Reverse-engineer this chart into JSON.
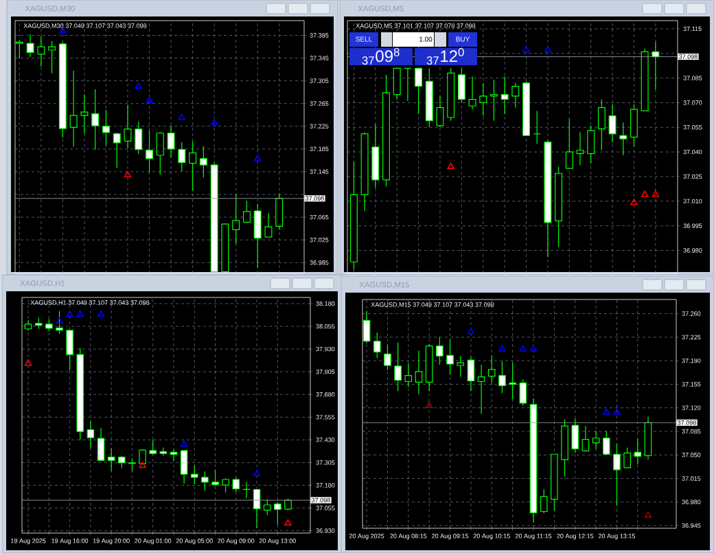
{
  "chart_data": [
    {
      "type": "candlestick",
      "title": "XAGUSD,M30",
      "subtitle": "XAGUSD,M30 37.049 37.107 37.043 37.098",
      "color": "#00ff00",
      "grid": true,
      "tick_labels": "y",
      "categories": [
        null,
        null,
        null,
        null,
        null,
        null,
        null,
        null,
        null,
        null,
        null,
        null,
        null,
        null,
        null,
        null,
        null,
        null,
        null,
        null,
        null,
        null,
        null,
        null,
        null
      ],
      "ohlc": [
        [
          37.371,
          37.376,
          37.345,
          37.373
        ],
        [
          37.371,
          37.387,
          37.347,
          37.355
        ],
        [
          37.352,
          37.383,
          37.33,
          37.365
        ],
        [
          37.359,
          37.375,
          37.318,
          37.365
        ],
        [
          37.37,
          37.373,
          37.205,
          37.221
        ],
        [
          37.223,
          37.323,
          37.189,
          37.244
        ],
        [
          37.244,
          37.281,
          37.212,
          37.25
        ],
        [
          37.247,
          37.29,
          37.184,
          37.226
        ],
        [
          37.225,
          37.254,
          37.191,
          37.214
        ],
        [
          37.212,
          37.214,
          37.152,
          37.196
        ],
        [
          37.199,
          37.263,
          37.186,
          37.22
        ],
        [
          37.22,
          37.233,
          37.176,
          37.184
        ],
        [
          37.183,
          37.218,
          37.144,
          37.168
        ],
        [
          37.174,
          37.215,
          37.14,
          37.213
        ],
        [
          37.213,
          37.226,
          37.17,
          37.185
        ],
        [
          37.184,
          37.197,
          37.146,
          37.161
        ],
        [
          37.16,
          37.198,
          37.111,
          37.178
        ],
        [
          37.168,
          37.19,
          37.135,
          37.157
        ],
        [
          37.157,
          37.161,
          36.969,
          36.969
        ],
        [
          36.969,
          37.054,
          36.969,
          37.053
        ],
        [
          37.043,
          37.106,
          37.018,
          37.059
        ],
        [
          37.056,
          37.094,
          37.055,
          37.075
        ],
        [
          37.076,
          37.088,
          36.976,
          37.028
        ],
        [
          37.03,
          37.072,
          37.03,
          37.048
        ],
        [
          37.049,
          37.107,
          37.043,
          37.098
        ]
      ],
      "ylim": [
        36.966,
        37.411
      ],
      "yticks": [
        {
          "value": 37.385,
          "label": "37.385"
        },
        {
          "value": 37.345,
          "label": "37.345"
        },
        {
          "value": 37.305,
          "label": "37.305"
        },
        {
          "value": 37.265,
          "label": "37.265"
        },
        {
          "value": 37.225,
          "label": "37.225"
        },
        {
          "value": 37.185,
          "label": "37.185"
        },
        {
          "value": 37.145,
          "label": "37.145"
        },
        {
          "value": 37.105,
          "label": null
        },
        {
          "value": 37.065,
          "label": "37.065"
        },
        {
          "value": 37.025,
          "label": "37.025"
        },
        {
          "value": 36.985,
          "label": "36.985"
        }
      ],
      "ref_lines": [
        {
          "axis": "y",
          "value": 37.098,
          "label": "37.098",
          "color": "#8c96a0"
        }
      ],
      "series": [
        {
          "type": "scatter",
          "color": "#0000ff",
          "marker": "triangle",
          "values": [
            null,
            null,
            null,
            null,
            37.393,
            null,
            null,
            null,
            null,
            null,
            null,
            37.295,
            37.27,
            null,
            null,
            37.24,
            null,
            null,
            37.231,
            null,
            null,
            null,
            37.168,
            null,
            null
          ]
        },
        {
          "type": "scatter",
          "color": "#ff0000",
          "marker": "triangle",
          "values": [
            null,
            null,
            null,
            null,
            null,
            null,
            null,
            null,
            null,
            null,
            37.139,
            null,
            null,
            null,
            null,
            null,
            null,
            null,
            null,
            null,
            null,
            null,
            null,
            null,
            null
          ]
        }
      ]
    },
    {
      "type": "candlestick",
      "title": "XAGUSD,M5",
      "subtitle": "XAGUSD,M5 37.101 37.107 37.078 37.098",
      "color": "#00ff00",
      "grid": true,
      "tick_labels": "y",
      "categories": [
        null,
        null,
        null,
        null,
        null,
        null,
        null,
        null,
        null,
        null,
        null,
        null,
        null,
        null,
        null,
        null,
        null,
        null,
        null,
        null,
        null,
        null,
        null,
        null,
        null,
        null,
        null,
        null,
        null
      ],
      "ohlc": [
        [
          36.973,
          37.034,
          36.968,
          37.014
        ],
        [
          37.014,
          37.052,
          37.004,
          37.051
        ],
        [
          37.043,
          37.057,
          37.018,
          37.023
        ],
        [
          37.023,
          37.087,
          37.019,
          37.076
        ],
        [
          37.075,
          37.091,
          37.072,
          37.091
        ],
        [
          37.091,
          37.091,
          37.071,
          37.091
        ],
        [
          37.091,
          37.091,
          37.063,
          37.08
        ],
        [
          37.083,
          37.091,
          37.055,
          37.059
        ],
        [
          37.056,
          37.074,
          37.055,
          37.067
        ],
        [
          37.061,
          37.091,
          37.059,
          37.088
        ],
        [
          37.087,
          37.091,
          37.07,
          37.072
        ],
        [
          37.068,
          37.086,
          37.066,
          37.072
        ],
        [
          37.07,
          37.082,
          37.062,
          37.074
        ],
        [
          37.074,
          37.084,
          37.059,
          37.075
        ],
        [
          37.075,
          37.086,
          37.063,
          37.072
        ],
        [
          37.074,
          37.082,
          37.067,
          37.08
        ],
        [
          37.082,
          37.083,
          37.05,
          37.05
        ],
        [
          37.051,
          37.065,
          37.045,
          37.051
        ],
        [
          37.046,
          37.047,
          36.976,
          36.997
        ],
        [
          36.998,
          37.031,
          36.982,
          37.027
        ],
        [
          37.03,
          37.06,
          37.03,
          37.04
        ],
        [
          37.039,
          37.052,
          37.032,
          37.041
        ],
        [
          37.039,
          37.056,
          37.033,
          37.053
        ],
        [
          37.054,
          37.072,
          37.041,
          37.067
        ],
        [
          37.062,
          37.069,
          37.046,
          37.051
        ],
        [
          37.05,
          37.058,
          37.038,
          37.048
        ],
        [
          37.049,
          37.069,
          37.043,
          37.066
        ],
        [
          37.065,
          37.103,
          37.065,
          37.101
        ],
        [
          37.101,
          37.107,
          37.078,
          37.098
        ]
      ],
      "ylim": [
        36.966,
        37.12
      ],
      "yticks": [
        {
          "value": 37.115,
          "label": "37.115"
        },
        {
          "value": 37.1,
          "label": null
        },
        {
          "value": 37.085,
          "label": "37.085"
        },
        {
          "value": 37.07,
          "label": "37.070"
        },
        {
          "value": 37.055,
          "label": "37.055"
        },
        {
          "value": 37.04,
          "label": "37.040"
        },
        {
          "value": 37.025,
          "label": "37.025"
        },
        {
          "value": 37.01,
          "label": "37.010"
        },
        {
          "value": 36.995,
          "label": "36.995"
        },
        {
          "value": 36.98,
          "label": "36.980"
        }
      ],
      "ref_lines": [
        {
          "axis": "y",
          "value": 37.098,
          "label": "37.098",
          "color": "#8c96a0"
        }
      ],
      "annotations": [
        "SELL",
        "1.00",
        "BUY",
        "$_{37}$09$^{8}$",
        "$_{37}$12$^{0}$"
      ],
      "series": [
        {
          "type": "scatter",
          "color": "#0000ff",
          "marker": "triangle",
          "values": [
            null,
            null,
            null,
            null,
            null,
            null,
            null,
            null,
            null,
            null,
            null,
            null,
            null,
            null,
            null,
            null,
            37.102,
            null,
            37.102,
            null,
            null,
            null,
            null,
            null,
            null,
            null,
            null,
            null,
            null
          ]
        },
        {
          "type": "scatter",
          "color": "#ff0000",
          "marker": "triangle",
          "values": [
            null,
            null,
            null,
            null,
            null,
            null,
            null,
            null,
            null,
            37.031,
            null,
            null,
            null,
            null,
            null,
            null,
            null,
            null,
            null,
            null,
            null,
            null,
            null,
            null,
            null,
            null,
            37.009,
            37.014,
            37.014
          ]
        }
      ]
    },
    {
      "type": "candlestick",
      "title": "XAGUSD,H1",
      "subtitle": "XAGUSD,H1 37.049 37.107 37.043 37.098",
      "color": "#00ff00",
      "grid": true,
      "categories": [
        "19 Aug 2025",
        null,
        null,
        null,
        "19 Aug 16:00",
        null,
        null,
        null,
        "19 Aug 20:00",
        null,
        null,
        null,
        "20 Aug 01:00",
        null,
        null,
        null,
        "20 Aug 05:00",
        null,
        null,
        null,
        "20 Aug 09:00",
        null,
        null,
        null,
        "20 Aug 13:00",
        null
      ],
      "ohlc": [
        [
          38.041,
          38.088,
          38.032,
          38.067
        ],
        [
          38.071,
          38.103,
          38.041,
          38.061
        ],
        [
          38.067,
          38.095,
          38.028,
          38.044
        ],
        [
          38.046,
          38.139,
          38.013,
          38.034
        ],
        [
          38.033,
          38.033,
          37.812,
          37.9
        ],
        [
          37.9,
          37.935,
          37.431,
          37.476
        ],
        [
          37.486,
          37.534,
          37.383,
          37.442
        ],
        [
          37.438,
          37.496,
          37.317,
          37.317
        ],
        [
          37.335,
          37.383,
          37.258,
          37.317
        ],
        [
          37.335,
          37.34,
          37.275,
          37.304
        ],
        [
          37.303,
          37.329,
          37.258,
          37.3
        ],
        [
          37.299,
          37.378,
          37.298,
          37.374
        ],
        [
          37.371,
          37.43,
          37.348,
          37.355
        ],
        [
          37.366,
          37.388,
          37.342,
          37.355
        ],
        [
          37.362,
          37.376,
          37.313,
          37.35
        ],
        [
          37.371,
          37.373,
          37.189,
          37.241
        ],
        [
          37.241,
          37.289,
          37.185,
          37.224
        ],
        [
          37.224,
          37.256,
          37.151,
          37.197
        ],
        [
          37.197,
          37.266,
          37.179,
          37.184
        ],
        [
          37.181,
          37.219,
          37.141,
          37.212
        ],
        [
          37.212,
          37.222,
          37.143,
          37.16
        ],
        [
          37.158,
          37.197,
          37.109,
          37.157
        ],
        [
          37.157,
          37.157,
          36.943,
          37.051
        ],
        [
          37.043,
          37.103,
          37.015,
          37.072
        ],
        [
          37.077,
          37.087,
          36.963,
          37.047
        ],
        [
          37.049,
          37.107,
          37.043,
          37.098
        ]
      ],
      "ylim": [
        36.917,
        38.214
      ],
      "yticks": [
        {
          "value": 38.18,
          "label": "38.180"
        },
        {
          "value": 38.055,
          "label": "38.055"
        },
        {
          "value": 37.93,
          "label": "37.930"
        },
        {
          "value": 37.805,
          "label": "37.805"
        },
        {
          "value": 37.68,
          "label": "37.680"
        },
        {
          "value": 37.555,
          "label": "37.555"
        },
        {
          "value": 37.43,
          "label": "37.430"
        },
        {
          "value": 37.305,
          "label": "37.305"
        },
        {
          "value": 37.18,
          "label": "37.180"
        },
        {
          "value": 37.055,
          "label": "37.055"
        },
        {
          "value": 36.93,
          "label": "36.930"
        }
      ],
      "ref_lines": [
        {
          "axis": "y",
          "value": 37.098,
          "label": "37.098",
          "color": "#8c96a0"
        }
      ],
      "series": [
        {
          "type": "scatter",
          "color": "#0000ff",
          "marker": "triangle",
          "values": [
            null,
            null,
            null,
            38.082,
            38.12,
            38.12,
            null,
            38.12,
            null,
            null,
            null,
            null,
            null,
            null,
            null,
            37.404,
            null,
            null,
            null,
            null,
            null,
            null,
            37.244,
            null,
            null,
            null
          ]
        },
        {
          "type": "scatter",
          "color": "#ff0000",
          "marker": "triangle",
          "values": [
            37.85,
            null,
            null,
            null,
            null,
            null,
            null,
            null,
            null,
            null,
            null,
            37.288,
            null,
            null,
            null,
            null,
            null,
            null,
            null,
            null,
            null,
            null,
            null,
            null,
            null,
            36.971
          ]
        }
      ]
    },
    {
      "type": "candlestick",
      "title": "XAGUSD,M15",
      "subtitle": "XAGUSD,M15 37.049 37.107 37.043 37.098",
      "color": "#00ff00",
      "grid": true,
      "categories": [
        "20 Aug 2025",
        null,
        null,
        null,
        "20 Aug 08:15",
        null,
        null,
        null,
        "20 Aug 09:15",
        null,
        null,
        null,
        "20 Aug 10:15",
        null,
        null,
        null,
        "20 Aug 11:15",
        null,
        null,
        null,
        "20 Aug 12:15",
        null,
        null,
        null,
        "20 Aug 13:15",
        null,
        null,
        null
      ],
      "ohlc": [
        [
          37.25,
          37.264,
          37.216,
          37.219
        ],
        [
          37.219,
          37.232,
          37.194,
          37.203
        ],
        [
          37.2,
          37.214,
          37.176,
          37.183
        ],
        [
          37.182,
          37.217,
          37.145,
          37.161
        ],
        [
          37.159,
          37.186,
          37.151,
          37.168
        ],
        [
          37.158,
          37.205,
          37.14,
          37.174
        ],
        [
          37.158,
          37.215,
          37.145,
          37.212
        ],
        [
          37.212,
          37.225,
          37.184,
          37.197
        ],
        [
          37.198,
          37.222,
          37.169,
          37.185
        ],
        [
          37.183,
          37.197,
          37.166,
          37.187
        ],
        [
          37.191,
          37.196,
          37.145,
          37.16
        ],
        [
          37.159,
          37.184,
          37.111,
          37.166
        ],
        [
          37.167,
          37.198,
          37.157,
          37.177
        ],
        [
          37.168,
          37.189,
          37.142,
          37.153
        ],
        [
          37.157,
          37.187,
          37.133,
          37.155
        ],
        [
          37.157,
          37.162,
          37.123,
          37.127
        ],
        [
          37.125,
          37.134,
          36.95,
          36.964
        ],
        [
          36.966,
          36.999,
          36.963,
          36.988
        ],
        [
          36.984,
          37.051,
          36.967,
          37.051
        ],
        [
          37.043,
          37.103,
          37.018,
          37.093
        ],
        [
          37.094,
          37.104,
          37.053,
          37.059
        ],
        [
          37.056,
          37.093,
          37.055,
          37.073
        ],
        [
          37.068,
          37.086,
          37.059,
          37.075
        ],
        [
          37.075,
          37.086,
          37.051,
          37.051
        ],
        [
          37.051,
          37.067,
          36.975,
          37.028
        ],
        [
          37.031,
          37.061,
          37.031,
          37.053
        ],
        [
          37.054,
          37.074,
          37.036,
          37.048
        ],
        [
          37.049,
          37.107,
          37.043,
          37.098
        ]
      ],
      "ylim": [
        36.941,
        37.281
      ],
      "yticks": [
        {
          "value": 37.26,
          "label": "37.260"
        },
        {
          "value": 37.225,
          "label": "37.225"
        },
        {
          "value": 37.19,
          "label": "37.190"
        },
        {
          "value": 37.155,
          "label": "37.155"
        },
        {
          "value": 37.12,
          "label": "37.120"
        },
        {
          "value": 37.085,
          "label": "37.085"
        },
        {
          "value": 37.05,
          "label": "37.050"
        },
        {
          "value": 37.015,
          "label": "37.015"
        },
        {
          "value": 36.98,
          "label": "36.980"
        },
        {
          "value": 36.945,
          "label": "36.945"
        }
      ],
      "ref_lines": [
        {
          "axis": "y",
          "value": 37.098,
          "label": "37.098",
          "color": "#8c96a0"
        }
      ],
      "series": [
        {
          "type": "scatter",
          "color": "#0000ff",
          "marker": "triangle",
          "values": [
            null,
            null,
            null,
            null,
            null,
            null,
            null,
            null,
            null,
            null,
            37.233,
            null,
            null,
            37.207,
            null,
            37.207,
            37.207,
            null,
            null,
            null,
            null,
            null,
            null,
            37.113,
            37.113,
            null,
            null,
            null
          ]
        },
        {
          "type": "scatter",
          "color": "#a00000",
          "marker": "triangle",
          "values": [
            null,
            null,
            null,
            null,
            null,
            null,
            37.123,
            null,
            null,
            null,
            null,
            null,
            null,
            null,
            null,
            null,
            null,
            null,
            null,
            null,
            null,
            null,
            null,
            null,
            null,
            null,
            null,
            36.96
          ]
        }
      ]
    }
  ]
}
